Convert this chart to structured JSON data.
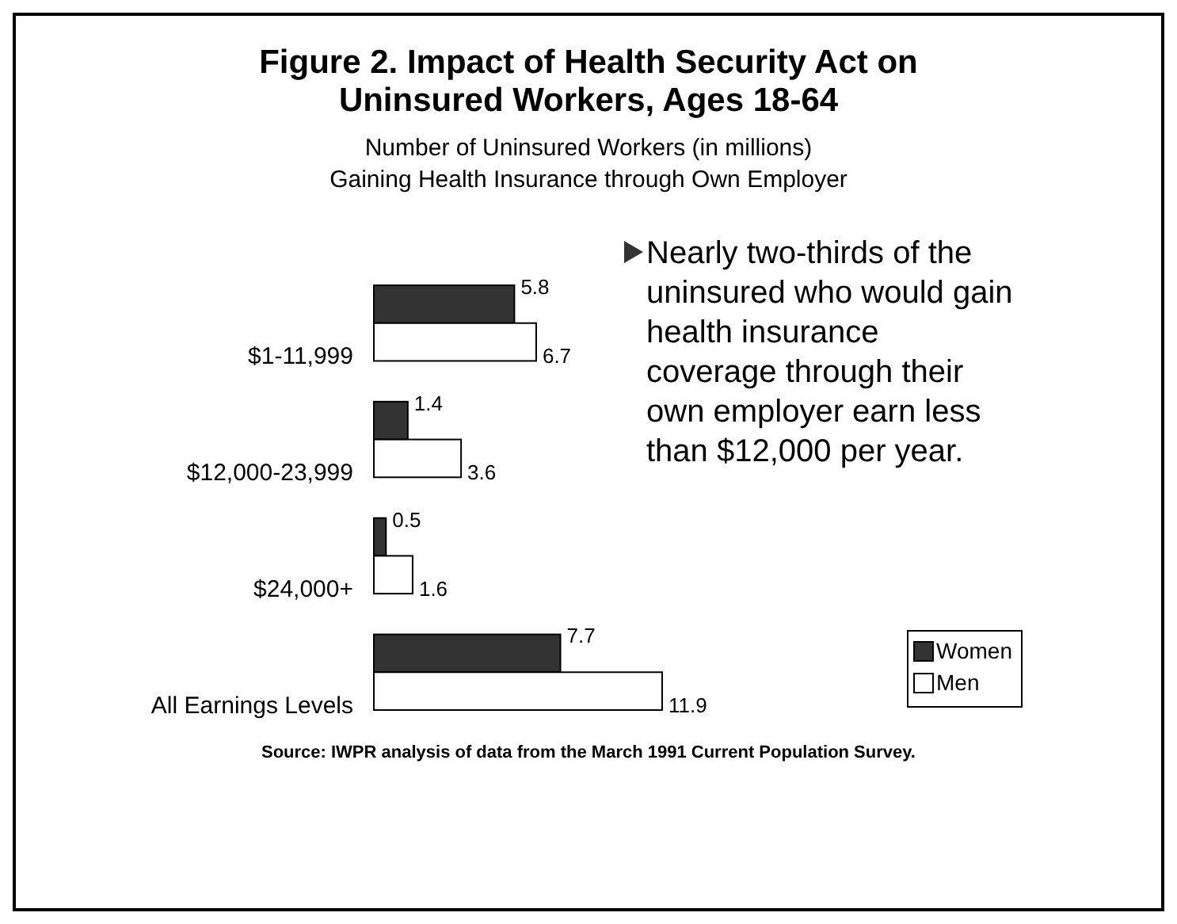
{
  "chart_data": {
    "type": "bar",
    "orientation": "horizontal",
    "title": "Figure 2.  Impact of Health Security Act on Uninsured Workers, Ages 18-64",
    "subtitle": "Number of Uninsured Workers (in millions)\nGaining Health Insurance through Own Employer",
    "categories": [
      "$1-11,999",
      "$12,000-23,999",
      "$24,000+",
      "All Earnings Levels"
    ],
    "series": [
      {
        "name": "Women",
        "color": "#333333",
        "values": [
          5.8,
          1.4,
          0.5,
          7.7
        ]
      },
      {
        "name": "Men",
        "color": "#ffffff",
        "values": [
          6.7,
          3.6,
          1.6,
          11.9
        ]
      }
    ],
    "data_labels": true,
    "legend": "bottom right",
    "annotations": [
      "Nearly two-thirds of the uninsured who would gain health insurance coverage through their own employer earn less than $12,000 per year.",
      "Source:  IWPR analysis of data from the March 1991 Current Population Survey."
    ]
  }
}
